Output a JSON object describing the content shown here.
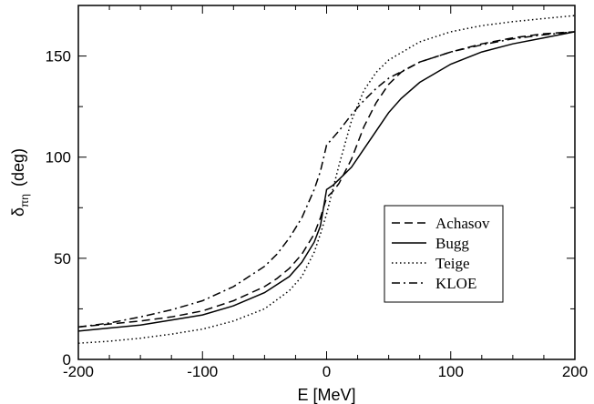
{
  "chart_data": {
    "type": "line",
    "xlabel": "E [MeV]",
    "ylabel": {
      "main": "δ",
      "sub": "πη",
      "unit": "(deg)"
    },
    "xlim": [
      -200,
      200
    ],
    "ylim": [
      0,
      175
    ],
    "xticks": [
      -200,
      -100,
      0,
      100,
      200
    ],
    "yticks": [
      0,
      50,
      100,
      150
    ],
    "grid": false,
    "legend_position": "center-right",
    "series": [
      {
        "name": "Achasov",
        "style": "dashed",
        "color": "#000000",
        "points": [
          [
            -200,
            16
          ],
          [
            -175,
            17.5
          ],
          [
            -150,
            19
          ],
          [
            -125,
            21
          ],
          [
            -100,
            24
          ],
          [
            -75,
            29
          ],
          [
            -50,
            36
          ],
          [
            -40,
            40
          ],
          [
            -30,
            45
          ],
          [
            -20,
            52
          ],
          [
            -10,
            62
          ],
          [
            -5,
            70
          ],
          [
            0,
            80
          ],
          [
            5,
            83
          ],
          [
            10,
            87
          ],
          [
            20,
            99
          ],
          [
            30,
            115
          ],
          [
            40,
            127
          ],
          [
            50,
            136
          ],
          [
            60,
            142
          ],
          [
            75,
            147
          ],
          [
            100,
            152
          ],
          [
            125,
            156
          ],
          [
            150,
            159
          ],
          [
            175,
            161
          ],
          [
            200,
            162
          ]
        ]
      },
      {
        "name": "Bugg",
        "style": "solid",
        "color": "#000000",
        "points": [
          [
            -200,
            14
          ],
          [
            -175,
            15.5
          ],
          [
            -150,
            17
          ],
          [
            -125,
            19.5
          ],
          [
            -100,
            22
          ],
          [
            -75,
            26.5
          ],
          [
            -50,
            33
          ],
          [
            -30,
            41
          ],
          [
            -20,
            48
          ],
          [
            -10,
            58
          ],
          [
            -5,
            66
          ],
          [
            0,
            84
          ],
          [
            5,
            86
          ],
          [
            10,
            89
          ],
          [
            20,
            95
          ],
          [
            30,
            104
          ],
          [
            40,
            113
          ],
          [
            50,
            122
          ],
          [
            60,
            129
          ],
          [
            75,
            137
          ],
          [
            100,
            146
          ],
          [
            125,
            152
          ],
          [
            150,
            156
          ],
          [
            175,
            159
          ],
          [
            200,
            162
          ]
        ]
      },
      {
        "name": "Teige",
        "style": "dotted",
        "color": "#000000",
        "points": [
          [
            -200,
            8
          ],
          [
            -175,
            9
          ],
          [
            -150,
            10.5
          ],
          [
            -125,
            12.5
          ],
          [
            -100,
            15
          ],
          [
            -75,
            19
          ],
          [
            -50,
            25
          ],
          [
            -30,
            34
          ],
          [
            -20,
            41
          ],
          [
            -10,
            53
          ],
          [
            -5,
            62
          ],
          [
            0,
            72
          ],
          [
            5,
            84
          ],
          [
            10,
            96
          ],
          [
            20,
            118
          ],
          [
            30,
            133
          ],
          [
            40,
            142
          ],
          [
            50,
            148
          ],
          [
            75,
            157
          ],
          [
            100,
            162
          ],
          [
            125,
            165
          ],
          [
            150,
            167
          ],
          [
            175,
            168.5
          ],
          [
            200,
            170
          ]
        ]
      },
      {
        "name": "KLOE",
        "style": "dashdot",
        "color": "#000000",
        "points": [
          [
            -200,
            16
          ],
          [
            -175,
            18
          ],
          [
            -150,
            21
          ],
          [
            -125,
            24.5
          ],
          [
            -100,
            29
          ],
          [
            -75,
            36
          ],
          [
            -50,
            46
          ],
          [
            -40,
            52
          ],
          [
            -30,
            60
          ],
          [
            -20,
            70
          ],
          [
            -10,
            84
          ],
          [
            -5,
            93
          ],
          [
            0,
            106
          ],
          [
            10,
            113
          ],
          [
            20,
            121
          ],
          [
            30,
            128
          ],
          [
            40,
            134
          ],
          [
            50,
            139
          ],
          [
            75,
            147
          ],
          [
            100,
            152
          ],
          [
            125,
            155.5
          ],
          [
            150,
            158.5
          ],
          [
            175,
            160.5
          ],
          [
            200,
            162
          ]
        ]
      }
    ]
  }
}
